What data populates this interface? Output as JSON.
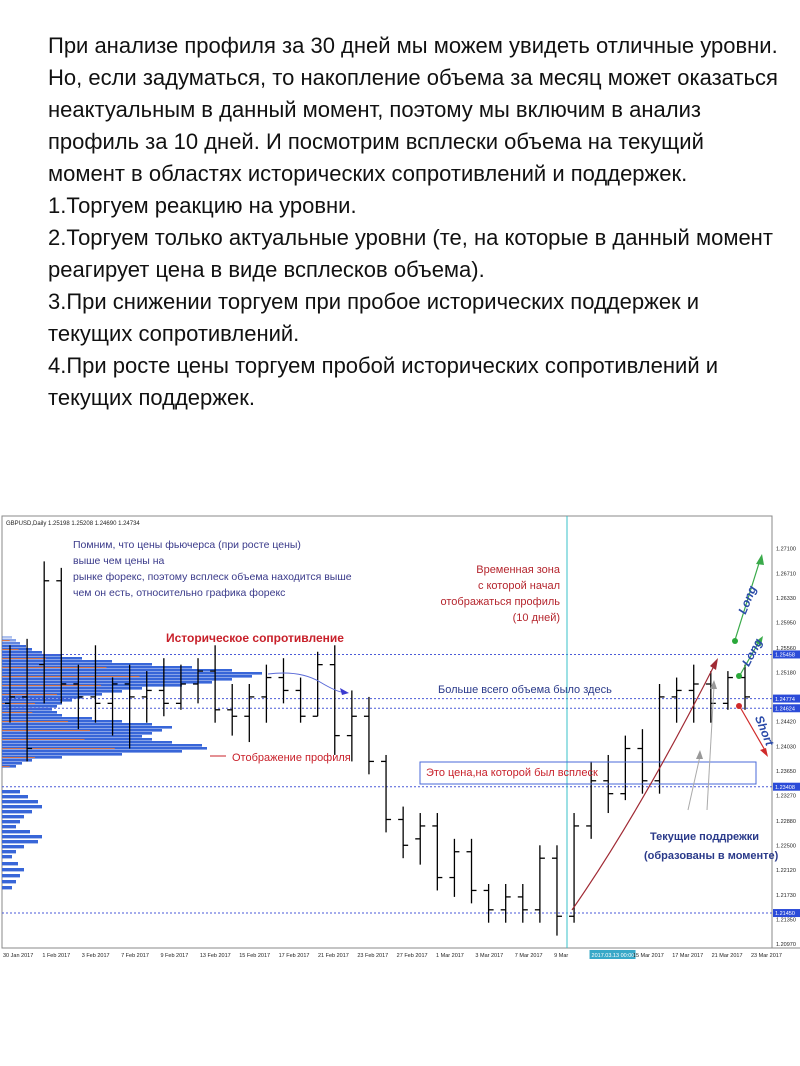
{
  "text": {
    "paragraph": "При анализе профиля за 30 дней мы можем увидеть отличные уровни. Но, если задуматься, то накопление объема за месяц может оказаться неактуальным в данный момент, поэтому мы включим в анализ профиль за 10 дней. И посмотрим всплески объема на текущий момент в областях исторических сопротивлений и поддержек.",
    "items": [
      "1.Торгуем реакцию на уровни.",
      "2.Торгуем только актуальные уровни (те, на которые в данный момент реагирует цена в виде всплесков объема).",
      "3.При снижении торгуем при пробое исторических поддержек и текущих сопротивлений.",
      "4.При росте цены торгуем пробой исторических сопротивлений и текущих поддержек."
    ]
  },
  "chart_data": {
    "type": "ohlc",
    "symbol_header": "GBPUSD,Daily 1.25198 1.25208 1.24690 1.24734",
    "ylim": [
      1.2097,
      1.2748
    ],
    "y_ticks": [
      "1.27100",
      "1.26710",
      "1.26330",
      "1.25950",
      "1.25560",
      "1.25180",
      "1.24800",
      "1.24420",
      "1.24030",
      "1.23650",
      "1.23270",
      "1.22880",
      "1.22500",
      "1.22120",
      "1.21730",
      "1.21350",
      "1.20970"
    ],
    "x_ticks": [
      "30 Jan 2017",
      "1 Feb 2017",
      "3 Feb 2017",
      "7 Feb 2017",
      "9 Feb 2017",
      "13 Feb 2017",
      "15 Feb 2017",
      "17 Feb 2017",
      "21 Feb 2017",
      "23 Feb 2017",
      "27 Feb 2017",
      "1 Mar 2017",
      "3 Mar 2017",
      "7 Mar 2017",
      "9 Mar",
      "2017.03.13 00:00",
      "15 Mar 2017",
      "17 Mar 2017",
      "21 Mar 2017",
      "23 Mar 2017"
    ],
    "price_labels": [
      {
        "text": "1.25458",
        "value": 1.25458,
        "color": "#2b4bd8"
      },
      {
        "text": "1.24774",
        "value": 1.24774,
        "color": "#2b4bd8"
      },
      {
        "text": "1.24624",
        "value": 1.24624,
        "color": "#2b4bd8"
      },
      {
        "text": "1.23408",
        "value": 1.23408,
        "color": "#2b4bd8"
      },
      {
        "text": "1.21450",
        "value": 1.2145,
        "color": "#2b4bd8"
      }
    ],
    "levels": [
      1.25458,
      1.24774,
      1.24624,
      1.23408,
      1.2145
    ],
    "candles": [
      [
        1.247,
        1.256,
        1.244,
        1.248
      ],
      [
        1.248,
        1.257,
        1.238,
        1.24
      ],
      [
        1.253,
        1.269,
        1.247,
        1.266
      ],
      [
        1.266,
        1.268,
        1.247,
        1.25
      ],
      [
        1.25,
        1.253,
        1.243,
        1.248
      ],
      [
        1.248,
        1.256,
        1.244,
        1.247
      ],
      [
        1.247,
        1.251,
        1.242,
        1.25
      ],
      [
        1.25,
        1.253,
        1.24,
        1.248
      ],
      [
        1.248,
        1.252,
        1.244,
        1.249
      ],
      [
        1.249,
        1.254,
        1.245,
        1.247
      ],
      [
        1.247,
        1.253,
        1.246,
        1.25
      ],
      [
        1.25,
        1.254,
        1.247,
        1.252
      ],
      [
        1.252,
        1.256,
        1.244,
        1.246
      ],
      [
        1.246,
        1.25,
        1.242,
        1.245
      ],
      [
        1.245,
        1.25,
        1.241,
        1.248
      ],
      [
        1.248,
        1.253,
        1.244,
        1.251
      ],
      [
        1.251,
        1.254,
        1.247,
        1.249
      ],
      [
        1.249,
        1.251,
        1.244,
        1.245
      ],
      [
        1.245,
        1.255,
        1.245,
        1.253
      ],
      [
        1.253,
        1.256,
        1.239,
        1.242
      ],
      [
        1.242,
        1.249,
        1.238,
        1.245
      ],
      [
        1.245,
        1.248,
        1.236,
        1.238
      ],
      [
        1.238,
        1.239,
        1.227,
        1.229
      ],
      [
        1.229,
        1.231,
        1.223,
        1.225
      ],
      [
        1.226,
        1.23,
        1.222,
        1.228
      ],
      [
        1.228,
        1.23,
        1.218,
        1.22
      ],
      [
        1.22,
        1.226,
        1.217,
        1.224
      ],
      [
        1.224,
        1.226,
        1.216,
        1.218
      ],
      [
        1.218,
        1.219,
        1.213,
        1.215
      ],
      [
        1.215,
        1.219,
        1.213,
        1.217
      ],
      [
        1.217,
        1.219,
        1.213,
        1.215
      ],
      [
        1.215,
        1.225,
        1.213,
        1.223
      ],
      [
        1.223,
        1.225,
        1.211,
        1.214
      ],
      [
        1.214,
        1.23,
        1.213,
        1.228
      ],
      [
        1.228,
        1.238,
        1.226,
        1.235
      ],
      [
        1.235,
        1.239,
        1.23,
        1.233
      ],
      [
        1.233,
        1.242,
        1.232,
        1.24
      ],
      [
        1.24,
        1.243,
        1.233,
        1.235
      ],
      [
        1.235,
        1.25,
        1.233,
        1.248
      ],
      [
        1.248,
        1.251,
        1.244,
        1.249
      ],
      [
        1.249,
        1.253,
        1.244,
        1.25
      ],
      [
        1.25,
        1.252,
        1.244,
        1.247
      ],
      [
        1.247,
        1.252,
        1.246,
        1.251
      ],
      [
        1.251,
        1.253,
        1.246,
        1.248
      ]
    ],
    "annotations": {
      "note_futures": [
        "Помним, что цены фьючерса  (при росте цены)",
        "выше чем цены на",
        "рынке форекс, поэтому всплеск объема находится выше",
        "чем он есть, относительно графика форекс"
      ],
      "historical_resistance": "Историческое сопротивление",
      "profile_display": "Отображение профиля",
      "time_zone": [
        "Временная зона",
        "с которой начал",
        "отображаться профиль",
        "(10 дней)"
      ],
      "max_volume": "Больше всего объема было здесь",
      "spike_price": "Это цена,на которой был всплеск",
      "current_supports": [
        "Текущие поддрежки",
        "(образованы в моменте)"
      ],
      "long_1": "Long",
      "long_2": "Long",
      "short": "Short"
    }
  }
}
